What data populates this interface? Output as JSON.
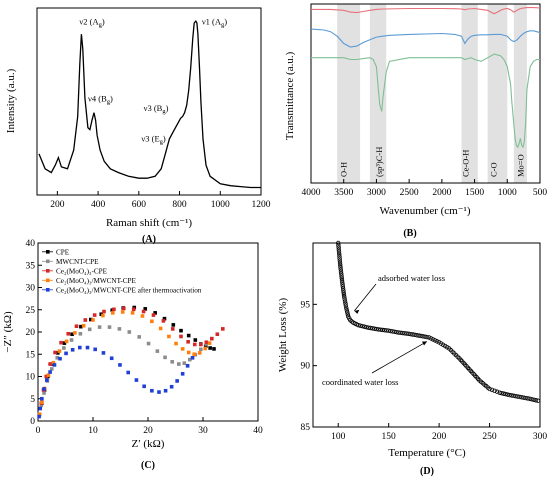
{
  "chart_data": [
    {
      "panel_label": "(A)",
      "type": "line",
      "xlabel": "Raman shift (cm⁻¹)",
      "ylabel": "Intensity (a.u.)",
      "xlim": [
        100,
        1200
      ],
      "xticks": [
        200,
        400,
        600,
        800,
        1000,
        1200
      ],
      "y_ticks_shown": false,
      "grid": false,
      "series": [
        {
          "color": "#000000",
          "x": [
            110,
            140,
            170,
            190,
            205,
            220,
            250,
            280,
            300,
            310,
            318,
            325,
            335,
            350,
            360,
            370,
            380,
            388,
            395,
            410,
            430,
            460,
            500,
            550,
            600,
            640,
            680,
            710,
            730,
            750,
            770,
            790,
            805,
            815,
            825,
            835,
            845,
            855,
            865,
            872,
            880,
            885,
            890,
            898,
            905,
            915,
            930,
            950,
            1000,
            1050,
            1100,
            1150,
            1200
          ],
          "y": [
            0.22,
            0.14,
            0.12,
            0.16,
            0.2,
            0.15,
            0.14,
            0.24,
            0.42,
            0.7,
            0.86,
            0.78,
            0.52,
            0.36,
            0.35,
            0.4,
            0.44,
            0.4,
            0.32,
            0.24,
            0.18,
            0.14,
            0.12,
            0.1,
            0.09,
            0.09,
            0.1,
            0.14,
            0.22,
            0.3,
            0.34,
            0.38,
            0.41,
            0.42,
            0.44,
            0.48,
            0.56,
            0.68,
            0.84,
            0.92,
            0.93,
            0.92,
            0.86,
            0.68,
            0.5,
            0.3,
            0.16,
            0.1,
            0.06,
            0.05,
            0.045,
            0.04,
            0.04
          ]
        }
      ],
      "annotations": [
        {
          "label": "ν2 (A_g)",
          "x": 318,
          "y": 0.9
        },
        {
          "label": "ν1 (A_g)",
          "x": 880,
          "y": 0.9
        },
        {
          "label": "ν4 (B_g)",
          "x": 380,
          "y": 0.5
        },
        {
          "label": "ν3 (B_g)",
          "x": 820,
          "y": 0.45
        },
        {
          "label": "ν3 (E_g)",
          "x": 760,
          "y": 0.35
        }
      ]
    },
    {
      "panel_label": "(B)",
      "type": "line",
      "xlabel": "Wavenumber (cm⁻¹)",
      "ylabel": "Transmittance (a.u.)",
      "xlim": [
        4000,
        500
      ],
      "xticks": [
        4000,
        3500,
        3000,
        2500,
        2000,
        1500,
        1000,
        500
      ],
      "y_ticks_shown": false,
      "grid": false,
      "shaded_bands": [
        [
          3600,
          3250
        ],
        [
          3100,
          2850
        ],
        [
          1700,
          1450
        ],
        [
          1300,
          1000
        ],
        [
          900,
          700
        ]
      ],
      "band_labels": [
        {
          "label": "O-H",
          "x": 3500
        },
        {
          "label": "(sp³)C-H",
          "x": 2960
        },
        {
          "label": "Ce-O-H",
          "x": 1640
        },
        {
          "label": "C-O",
          "x": 1210
        },
        {
          "label": "Mo=O",
          "x": 800
        }
      ],
      "series": [
        {
          "color": "#e8707a",
          "x": [
            4000,
            3700,
            3500,
            3400,
            3300,
            3200,
            3100,
            3000,
            2900,
            2500,
            2000,
            1800,
            1700,
            1650,
            1600,
            1500,
            1400,
            1300,
            1250,
            1200,
            1150,
            1100,
            1050,
            1000,
            950,
            900,
            850,
            800,
            700,
            600,
            500
          ],
          "y": [
            0.97,
            0.97,
            0.965,
            0.955,
            0.952,
            0.958,
            0.965,
            0.97,
            0.972,
            0.975,
            0.975,
            0.974,
            0.972,
            0.968,
            0.972,
            0.975,
            0.97,
            0.965,
            0.955,
            0.945,
            0.955,
            0.965,
            0.972,
            0.975,
            0.968,
            0.955,
            0.965,
            0.975,
            0.98,
            0.98,
            0.978
          ]
        },
        {
          "color": "#5b9bd5",
          "x": [
            4000,
            3800,
            3700,
            3600,
            3500,
            3400,
            3300,
            3200,
            3100,
            3000,
            2900,
            2800,
            2500,
            2000,
            1800,
            1700,
            1650,
            1600,
            1550,
            1500,
            1400,
            1300,
            1200,
            1100,
            1000,
            950,
            900,
            850,
            800,
            750,
            700,
            650,
            600,
            550,
            500
          ],
          "y": [
            0.86,
            0.855,
            0.845,
            0.82,
            0.78,
            0.76,
            0.765,
            0.785,
            0.8,
            0.815,
            0.82,
            0.825,
            0.83,
            0.835,
            0.83,
            0.82,
            0.78,
            0.805,
            0.82,
            0.825,
            0.828,
            0.828,
            0.83,
            0.83,
            0.82,
            0.8,
            0.79,
            0.8,
            0.82,
            0.835,
            0.845,
            0.85,
            0.85,
            0.845,
            0.84
          ]
        },
        {
          "color": "#7fbf95",
          "x": [
            4000,
            3700,
            3500,
            3400,
            3300,
            3200,
            3100,
            3050,
            3000,
            2970,
            2950,
            2920,
            2900,
            2850,
            2800,
            2500,
            2000,
            1800,
            1700,
            1650,
            1600,
            1550,
            1500,
            1400,
            1300,
            1200,
            1100,
            1050,
            1000,
            950,
            930,
            900,
            880,
            860,
            840,
            820,
            800,
            780,
            760,
            740,
            720,
            700,
            650,
            600,
            550,
            500
          ],
          "y": [
            0.7,
            0.7,
            0.7,
            0.69,
            0.69,
            0.695,
            0.7,
            0.69,
            0.65,
            0.52,
            0.44,
            0.4,
            0.48,
            0.62,
            0.68,
            0.7,
            0.7,
            0.7,
            0.7,
            0.69,
            0.695,
            0.7,
            0.69,
            0.68,
            0.7,
            0.72,
            0.71,
            0.69,
            0.65,
            0.55,
            0.45,
            0.33,
            0.25,
            0.21,
            0.2,
            0.22,
            0.25,
            0.21,
            0.2,
            0.23,
            0.33,
            0.52,
            0.65,
            0.68,
            0.69,
            0.69
          ]
        }
      ]
    },
    {
      "panel_label": "(C)",
      "type": "scatter",
      "xlabel": "Z′ (kΩ)",
      "ylabel": "−Z″ (kΩ)",
      "xlim": [
        0,
        40
      ],
      "ylim": [
        0,
        40
      ],
      "xticks": [
        0,
        10,
        20,
        30,
        40
      ],
      "yticks": [
        0,
        5,
        10,
        15,
        20,
        25,
        30,
        35,
        40
      ],
      "grid": false,
      "legend_placement": "top-left",
      "series": [
        {
          "name": "CPE",
          "color": "#000000",
          "x": [
            0.3,
            0.7,
            1.2,
            1.8,
            2.6,
            3.6,
            4.8,
            6.2,
            7.8,
            9.6,
            11.5,
            13.5,
            15.5,
            17.5,
            19.5,
            21.3,
            23.0,
            24.6,
            26.0,
            27.4,
            28.6,
            29.6,
            30.5,
            31.3,
            32.0
          ],
          "y": [
            1.5,
            4.0,
            7.0,
            10.0,
            12.8,
            15.3,
            17.5,
            19.5,
            21.2,
            22.8,
            24.0,
            24.9,
            25.4,
            25.5,
            25.2,
            24.3,
            23.0,
            21.6,
            20.3,
            19.2,
            18.2,
            17.3,
            16.8,
            16.4,
            16.2
          ]
        },
        {
          "name": "MWCNT-CPE",
          "color": "#8c8c8c",
          "x": [
            0.3,
            0.6,
            1.1,
            1.7,
            2.5,
            3.5,
            4.7,
            6.1,
            7.7,
            9.4,
            11.2,
            13.0,
            14.8,
            16.6,
            18.4,
            20.1,
            21.7,
            23.1,
            24.4,
            25.6,
            26.6,
            27.6,
            28.6,
            29.6,
            30.6,
            31.6
          ],
          "y": [
            1.5,
            3.5,
            6.3,
            9.0,
            11.7,
            14.2,
            16.4,
            18.2,
            19.6,
            20.6,
            21.1,
            21.1,
            20.7,
            20.0,
            18.9,
            17.4,
            15.7,
            14.3,
            13.3,
            12.8,
            13.0,
            13.8,
            14.9,
            16.1,
            17.3,
            18.5
          ]
        },
        {
          "name": "Ce₂(MoO₄)₃-CPE",
          "color": "#d62728",
          "x": [
            0.3,
            0.6,
            1.0,
            1.5,
            2.2,
            3.1,
            4.2,
            5.5,
            7.0,
            8.6,
            10.3,
            12.0,
            13.8,
            15.6,
            17.4,
            19.2,
            21.0,
            22.8,
            24.5,
            26.0,
            27.3,
            28.5,
            29.6,
            30.6,
            31.6,
            32.6,
            33.6
          ],
          "y": [
            1.5,
            4.0,
            7.0,
            10.0,
            12.8,
            15.4,
            17.6,
            19.6,
            21.3,
            22.7,
            23.8,
            24.6,
            25.1,
            25.3,
            25.1,
            24.6,
            23.8,
            22.5,
            20.7,
            19.0,
            17.8,
            17.2,
            17.2,
            17.7,
            18.5,
            19.5,
            20.7
          ]
        },
        {
          "name": "Ce₂(MoO₄)₃/MWCNT-CPE",
          "color": "#ff7f0e",
          "x": [
            0.3,
            0.7,
            1.2,
            1.9,
            2.8,
            3.9,
            5.2,
            6.7,
            8.3,
            10.0,
            11.8,
            13.6,
            15.4,
            17.2,
            19.0,
            20.7,
            22.3,
            23.8,
            25.1,
            26.3,
            27.4,
            28.4,
            29.4,
            30.4,
            31.2
          ],
          "y": [
            1.5,
            4.2,
            7.3,
            10.3,
            13.1,
            15.7,
            17.9,
            19.8,
            21.4,
            22.7,
            23.7,
            24.3,
            24.5,
            24.3,
            23.6,
            22.4,
            20.8,
            19.0,
            17.4,
            16.2,
            15.4,
            15.0,
            15.3,
            16.3,
            17.5
          ]
        },
        {
          "name": "Ce₂(MoO₄)₃/MWCNT-CPE after thermoactivation",
          "color": "#1f3fd6",
          "x": [
            0.2,
            0.4,
            0.7,
            1.1,
            1.6,
            2.2,
            3.0,
            4.0,
            5.1,
            6.3,
            7.6,
            9.0,
            10.4,
            11.9,
            13.4,
            14.9,
            16.4,
            17.9,
            19.3,
            20.7,
            22.0,
            23.2,
            24.3,
            25.3,
            26.3,
            27.2,
            28.1
          ],
          "y": [
            1.0,
            2.8,
            5.0,
            7.2,
            9.2,
            11.0,
            12.6,
            14.0,
            15.2,
            16.0,
            16.5,
            16.5,
            16.1,
            15.3,
            14.1,
            12.6,
            10.9,
            9.2,
            7.8,
            6.8,
            6.5,
            6.8,
            7.7,
            9.0,
            10.6,
            12.4,
            14.2
          ]
        }
      ]
    },
    {
      "panel_label": "(D)",
      "type": "scatter",
      "xlabel": "Temperature (°C)",
      "ylabel": "Weight Loss (%)",
      "xlim": [
        75,
        300
      ],
      "ylim": [
        85,
        100
      ],
      "xticks": [
        100,
        150,
        200,
        250,
        300
      ],
      "yticks": [
        85,
        90,
        95
      ],
      "grid": false,
      "series": [
        {
          "color": "#000000",
          "x": [
            100,
            102,
            104,
            106,
            108,
            110,
            112,
            115,
            120,
            130,
            140,
            150,
            160,
            170,
            180,
            190,
            200,
            210,
            220,
            230,
            240,
            250,
            255,
            260,
            270,
            280,
            290,
            300
          ],
          "y": [
            100,
            98.2,
            96.8,
            95.6,
            94.7,
            94.0,
            93.7,
            93.5,
            93.3,
            93.1,
            92.95,
            92.85,
            92.7,
            92.6,
            92.45,
            92.3,
            91.9,
            91.4,
            90.6,
            89.7,
            88.8,
            88.1,
            87.95,
            87.8,
            87.6,
            87.45,
            87.3,
            87.1
          ]
        }
      ],
      "annotations": [
        {
          "label": "adsorbed water loss",
          "x": 115,
          "y": 94.3
        },
        {
          "label": "coordinated water loss",
          "x": 190,
          "y": 92.3
        }
      ]
    }
  ]
}
